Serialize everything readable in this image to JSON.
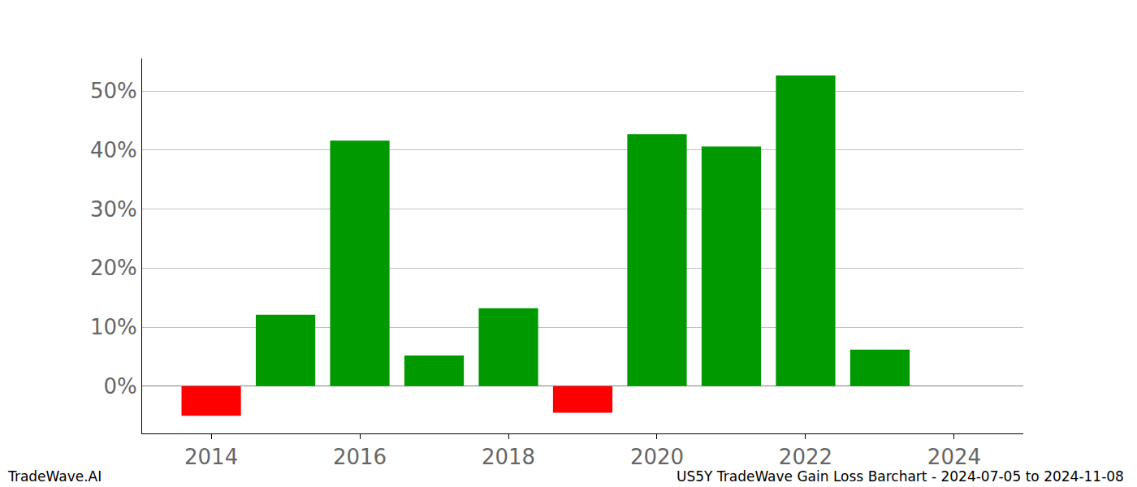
{
  "chart_data": {
    "type": "bar",
    "title": "US5Y TradeWave Gain Loss Barchart - 2024-07-05 to 2024-11-08",
    "annotations": [
      "TradeWave.AI"
    ],
    "x": [
      2014,
      2015,
      2016,
      2017,
      2018,
      2019,
      2020,
      2021,
      2022,
      2023
    ],
    "values": [
      -5.0,
      12.1,
      41.6,
      5.2,
      13.2,
      -4.5,
      42.7,
      40.6,
      52.6,
      6.2
    ],
    "colors": [
      "#ff0000",
      "#009900",
      "#009900",
      "#009900",
      "#009900",
      "#ff0000",
      "#009900",
      "#009900",
      "#009900",
      "#009900"
    ],
    "xlim": [
      2013.07,
      2024.93
    ],
    "xticks": [
      2014,
      2016,
      2018,
      2020,
      2022,
      2024
    ],
    "ylim": [
      -8,
      55.5
    ],
    "yticks": [
      {
        "value": 0,
        "label": "0%"
      },
      {
        "value": 10,
        "label": "10%"
      },
      {
        "value": 20,
        "label": "20%"
      },
      {
        "value": 30,
        "label": "30%"
      },
      {
        "value": 40,
        "label": "40%"
      },
      {
        "value": 50,
        "label": "50%"
      }
    ],
    "grid": true
  }
}
